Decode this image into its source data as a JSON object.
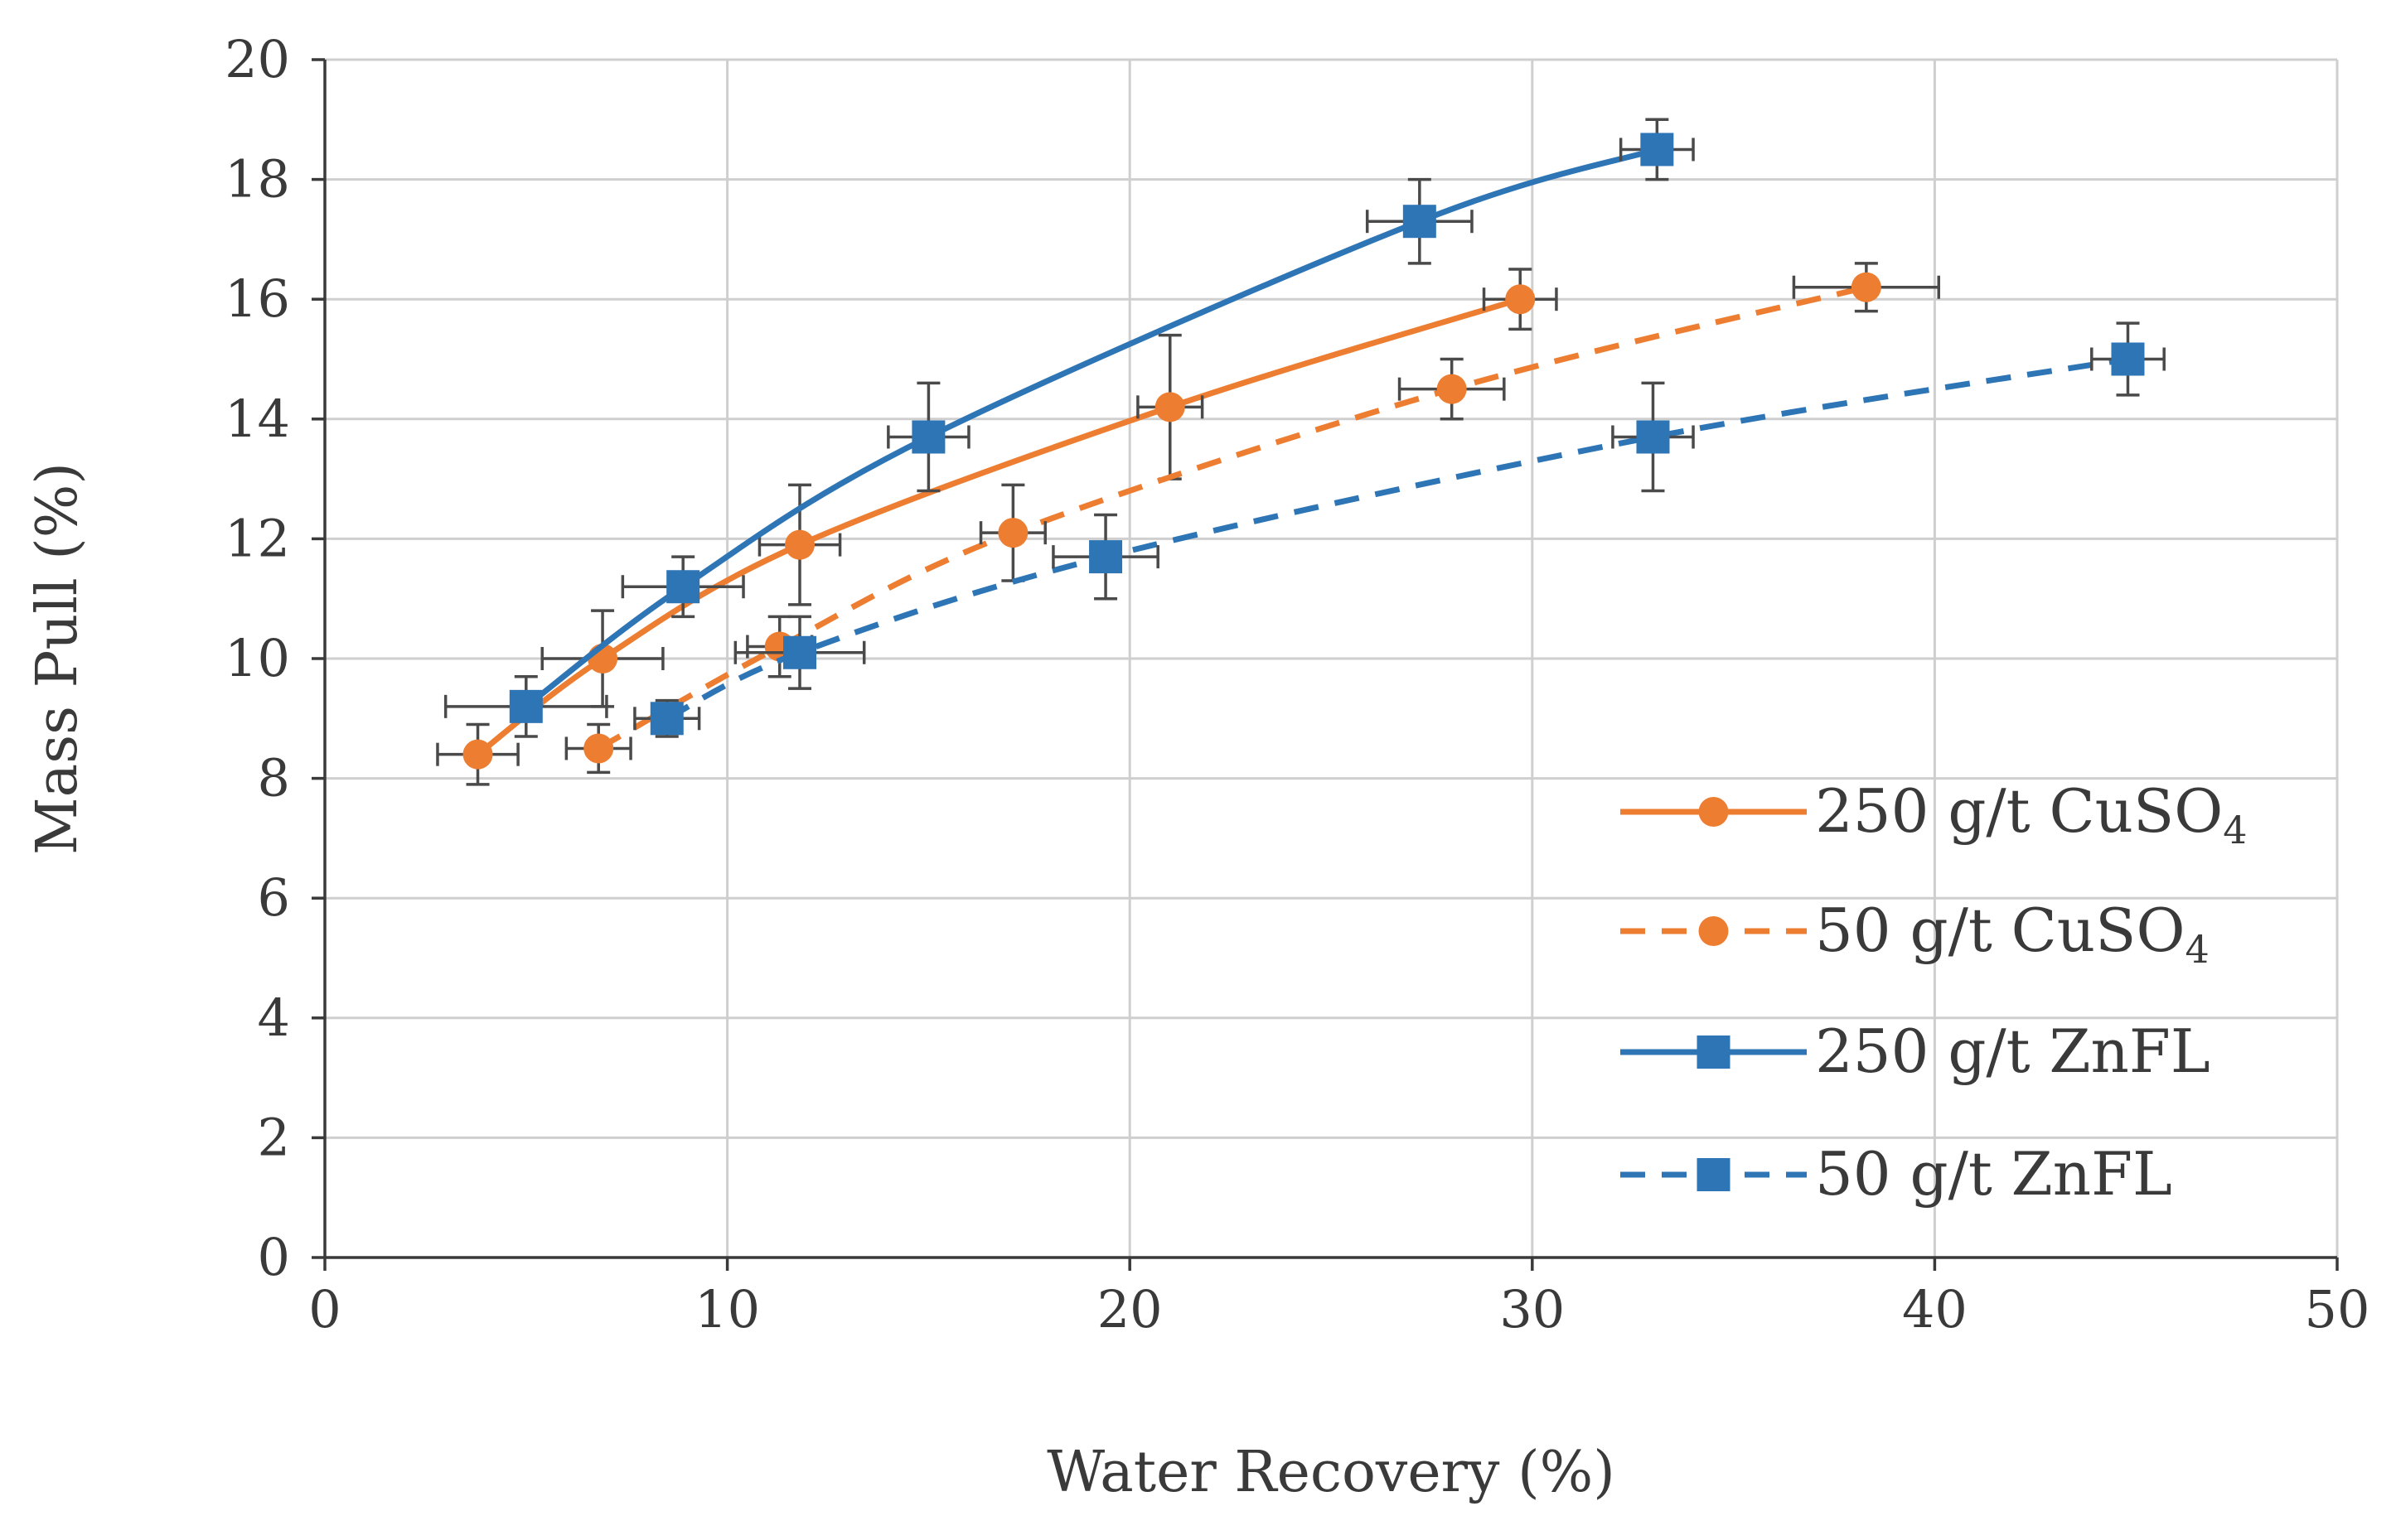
{
  "chart_data": {
    "type": "scatter",
    "title": "",
    "xlabel": "Water Recovery (%)",
    "ylabel": "Mass Pull (%)",
    "xlim": [
      0,
      50
    ],
    "ylim": [
      0,
      20
    ],
    "x_ticks": [
      0,
      10,
      20,
      30,
      40,
      50
    ],
    "y_ticks": [
      0,
      2,
      4,
      6,
      8,
      10,
      12,
      14,
      16,
      18,
      20
    ],
    "x_tick_labels": [
      "0",
      "10",
      "20",
      "30",
      "40",
      "50"
    ],
    "y_tick_labels": [
      "0",
      "2",
      "4",
      "6",
      "8",
      "10",
      "12",
      "14",
      "16",
      "18",
      "20"
    ],
    "grid": true,
    "legend_position": "bottom-right",
    "series": [
      {
        "name": "250 g/t CuSO",
        "subscript": "4",
        "color": "#ED7D31",
        "marker": "circle",
        "line": "solid",
        "points": [
          {
            "x": 3.8,
            "y": 8.4,
            "xerr": 1.0,
            "yerr": 0.5
          },
          {
            "x": 6.9,
            "y": 10.0,
            "xerr": 1.5,
            "yerr": 0.8
          },
          {
            "x": 11.8,
            "y": 11.9,
            "xerr": 1.0,
            "yerr": 1.0
          },
          {
            "x": 21.0,
            "y": 14.2,
            "xerr": 0.8,
            "yerr": 1.2
          },
          {
            "x": 29.7,
            "y": 16.0,
            "xerr": 0.9,
            "yerr": 0.5
          }
        ]
      },
      {
        "name": "50 g/t CuSO",
        "subscript": "4",
        "color": "#ED7D31",
        "marker": "circle",
        "line": "dashed",
        "points": [
          {
            "x": 6.8,
            "y": 8.5,
            "xerr": 0.8,
            "yerr": 0.4
          },
          {
            "x": 11.3,
            "y": 10.2,
            "xerr": 0.8,
            "yerr": 0.5
          },
          {
            "x": 17.1,
            "y": 12.1,
            "xerr": 0.8,
            "yerr": 0.8
          },
          {
            "x": 28.0,
            "y": 14.5,
            "xerr": 1.3,
            "yerr": 0.5
          },
          {
            "x": 38.3,
            "y": 16.2,
            "xerr": 1.8,
            "yerr": 0.4
          }
        ]
      },
      {
        "name": "250 g/t ZnFL",
        "subscript": "",
        "color": "#2E75B6",
        "marker": "square",
        "line": "solid",
        "points": [
          {
            "x": 5.0,
            "y": 9.2,
            "xerr": 2.0,
            "yerr": 0.5
          },
          {
            "x": 8.9,
            "y": 11.2,
            "xerr": 1.5,
            "yerr": 0.5
          },
          {
            "x": 15.0,
            "y": 13.7,
            "xerr": 1.0,
            "yerr": 0.9
          },
          {
            "x": 27.2,
            "y": 17.3,
            "xerr": 1.3,
            "yerr": 0.7
          },
          {
            "x": 33.1,
            "y": 18.5,
            "xerr": 0.9,
            "yerr": 0.5
          }
        ]
      },
      {
        "name": "50 g/t ZnFL",
        "subscript": "",
        "color": "#2E75B6",
        "marker": "square",
        "line": "dashed",
        "points": [
          {
            "x": 8.5,
            "y": 9.0,
            "xerr": 0.8,
            "yerr": 0.3
          },
          {
            "x": 11.8,
            "y": 10.1,
            "xerr": 1.6,
            "yerr": 0.6
          },
          {
            "x": 19.4,
            "y": 11.7,
            "xerr": 1.3,
            "yerr": 0.7
          },
          {
            "x": 33.0,
            "y": 13.7,
            "xerr": 1.0,
            "yerr": 0.9
          },
          {
            "x": 44.8,
            "y": 15.0,
            "xerr": 0.9,
            "yerr": 0.6
          }
        ]
      }
    ]
  }
}
